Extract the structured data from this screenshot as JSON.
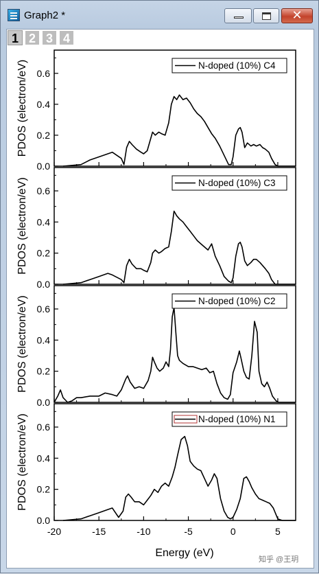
{
  "window": {
    "title": "Graph2 *",
    "controls": {
      "minimize": "minimize",
      "maximize": "maximize",
      "close": "✕"
    }
  },
  "tabs": [
    "1",
    "2",
    "3",
    "4"
  ],
  "active_tab": 0,
  "watermark": "知乎 @王玥",
  "chart_data": [
    {
      "type": "line",
      "ylabel": "PDOS (electron/eV)",
      "xlabel": "",
      "xlim": [
        -20,
        7
      ],
      "ylim": [
        0,
        0.75
      ],
      "yticks": [
        "0.0",
        "0.2",
        "0.4",
        "0.6"
      ],
      "series": [
        {
          "name": "N-doped (10%) C4",
          "color": "#000000",
          "x": [
            -19,
            -17,
            -16,
            -15,
            -14,
            -13.5,
            -12.5,
            -12.2,
            -11.9,
            -11.6,
            -11.3,
            -10.8,
            -10.3,
            -10,
            -9.6,
            -9.2,
            -9,
            -8.7,
            -8.3,
            -8,
            -7.6,
            -7.2,
            -6.9,
            -6.6,
            -6.3,
            -6,
            -5.6,
            -5.2,
            -4.8,
            -4.4,
            -4,
            -3.6,
            -3.2,
            -2.8,
            -2.4,
            -2,
            -1.5,
            -1,
            -0.5,
            -0.2,
            0,
            0.3,
            0.6,
            0.8,
            1,
            1.3,
            1.6,
            2,
            2.3,
            2.6,
            3,
            3.3,
            3.6,
            4,
            4.3,
            4.7,
            5,
            5.3,
            6,
            7
          ],
          "y": [
            0,
            0.01,
            0.04,
            0.06,
            0.08,
            0.09,
            0.05,
            0.01,
            0.12,
            0.16,
            0.14,
            0.11,
            0.09,
            0.08,
            0.1,
            0.18,
            0.22,
            0.2,
            0.22,
            0.21,
            0.2,
            0.28,
            0.4,
            0.45,
            0.43,
            0.46,
            0.43,
            0.44,
            0.41,
            0.37,
            0.34,
            0.32,
            0.29,
            0.25,
            0.21,
            0.18,
            0.13,
            0.07,
            0.01,
            0.01,
            0.06,
            0.2,
            0.24,
            0.25,
            0.22,
            0.12,
            0.15,
            0.13,
            0.14,
            0.13,
            0.14,
            0.12,
            0.11,
            0.09,
            0.05,
            0.01,
            0,
            0,
            0,
            0
          ]
        }
      ]
    },
    {
      "type": "line",
      "ylabel": "PDOS (electron/eV)",
      "xlabel": "",
      "xlim": [
        -20,
        7
      ],
      "ylim": [
        0,
        0.75
      ],
      "yticks": [
        "0.0",
        "0.2",
        "0.4",
        "0.6"
      ],
      "series": [
        {
          "name": "N-doped (10%) C3",
          "color": "#000000",
          "x": [
            -19,
            -17,
            -16,
            -15,
            -14,
            -13.5,
            -12.5,
            -12.2,
            -11.9,
            -11.6,
            -11.3,
            -10.8,
            -10.3,
            -10,
            -9.6,
            -9.2,
            -9,
            -8.7,
            -8.3,
            -8,
            -7.6,
            -7.2,
            -6.9,
            -6.6,
            -6.3,
            -6,
            -5.6,
            -5.2,
            -4.8,
            -4.4,
            -4,
            -3.6,
            -3.2,
            -2.8,
            -2.4,
            -2,
            -1.5,
            -1,
            -0.5,
            -0.2,
            0,
            0.3,
            0.6,
            0.8,
            1,
            1.3,
            1.6,
            2,
            2.3,
            2.6,
            3,
            3.3,
            3.6,
            4,
            4.3,
            4.7,
            5,
            5.3,
            6,
            7
          ],
          "y": [
            0,
            0.01,
            0.03,
            0.05,
            0.07,
            0.06,
            0.03,
            0.01,
            0.12,
            0.16,
            0.13,
            0.1,
            0.1,
            0.09,
            0.08,
            0.14,
            0.2,
            0.22,
            0.2,
            0.21,
            0.23,
            0.24,
            0.34,
            0.47,
            0.44,
            0.42,
            0.4,
            0.37,
            0.34,
            0.31,
            0.28,
            0.26,
            0.24,
            0.22,
            0.26,
            0.18,
            0.12,
            0.05,
            0.02,
            0.01,
            0.04,
            0.18,
            0.26,
            0.27,
            0.24,
            0.15,
            0.12,
            0.14,
            0.16,
            0.16,
            0.14,
            0.12,
            0.1,
            0.07,
            0.03,
            0,
            0,
            0,
            0,
            0
          ]
        }
      ]
    },
    {
      "type": "line",
      "ylabel": "PDOS (electron/eV)",
      "xlabel": "",
      "xlim": [
        -20,
        7
      ],
      "ylim": [
        0,
        0.75
      ],
      "yticks": [
        "0.0",
        "0.2",
        "0.4",
        "0.6"
      ],
      "series": [
        {
          "name": "N-doped (10%) C2",
          "color": "#000000",
          "x": [
            -20,
            -19.6,
            -19.3,
            -19,
            -18.5,
            -18,
            -17.5,
            -17,
            -16,
            -15,
            -14.3,
            -13.5,
            -13,
            -12.5,
            -12,
            -11.8,
            -11.5,
            -11,
            -10.5,
            -10,
            -9.5,
            -9.2,
            -9,
            -8.8,
            -8.5,
            -8.2,
            -7.8,
            -7.5,
            -7.2,
            -7,
            -6.8,
            -6.6,
            -6.4,
            -6.2,
            -6,
            -5.6,
            -5,
            -4.5,
            -4,
            -3.5,
            -3,
            -2.6,
            -2.2,
            -1.8,
            -1.4,
            -1,
            -0.6,
            -0.3,
            0,
            0.4,
            0.7,
            0.9,
            1.2,
            1.5,
            1.8,
            2.1,
            2.4,
            2.7,
            2.9,
            3.2,
            3.5,
            3.8,
            4.1,
            4.4,
            4.8,
            5.1,
            5.5,
            6,
            7
          ],
          "y": [
            0,
            0.04,
            0.08,
            0.03,
            0,
            0.01,
            0.03,
            0.03,
            0.04,
            0.04,
            0.06,
            0.05,
            0.04,
            0.08,
            0.15,
            0.17,
            0.13,
            0.09,
            0.1,
            0.09,
            0.14,
            0.2,
            0.29,
            0.26,
            0.22,
            0.2,
            0.22,
            0.26,
            0.23,
            0.34,
            0.55,
            0.61,
            0.45,
            0.3,
            0.27,
            0.25,
            0.23,
            0.23,
            0.22,
            0.21,
            0.22,
            0.19,
            0.2,
            0.12,
            0.06,
            0.03,
            0.02,
            0.05,
            0.19,
            0.26,
            0.33,
            0.28,
            0.2,
            0.16,
            0.15,
            0.3,
            0.52,
            0.45,
            0.2,
            0.12,
            0.1,
            0.13,
            0.09,
            0.04,
            0.01,
            0,
            0,
            0,
            0
          ]
        }
      ]
    },
    {
      "type": "line",
      "ylabel": "PDOS (electron/eV)",
      "xlabel": "Energy (eV)",
      "xlim": [
        -20,
        7
      ],
      "ylim": [
        0,
        0.75
      ],
      "yticks": [
        "0.0",
        "0.2",
        "0.4",
        "0.6"
      ],
      "xticks": [
        "-20",
        "-15",
        "-10",
        "-5",
        "0",
        "5"
      ],
      "series": [
        {
          "name": "N-doped (10%) N1",
          "color": "#000000",
          "legend_border": "#b03030",
          "x": [
            -19,
            -17,
            -16,
            -15,
            -14,
            -13.5,
            -12.8,
            -12.3,
            -12,
            -11.7,
            -11.4,
            -11,
            -10.5,
            -10,
            -9.6,
            -9.2,
            -8.8,
            -8.4,
            -8,
            -7.6,
            -7.2,
            -6.8,
            -6.5,
            -6.2,
            -5.8,
            -5.4,
            -5.1,
            -4.8,
            -4.4,
            -4,
            -3.6,
            -3.2,
            -2.8,
            -2.4,
            -2.1,
            -1.8,
            -1.4,
            -1,
            -0.6,
            -0.3,
            0,
            0.4,
            0.8,
            1.2,
            1.5,
            1.8,
            2.1,
            2.5,
            2.9,
            3.3,
            3.7,
            4.1,
            4.5,
            5,
            5.5,
            6,
            7
          ],
          "y": [
            0,
            0.01,
            0.03,
            0.05,
            0.07,
            0.08,
            0.02,
            0.06,
            0.15,
            0.17,
            0.15,
            0.12,
            0.12,
            0.1,
            0.13,
            0.16,
            0.2,
            0.18,
            0.22,
            0.24,
            0.22,
            0.28,
            0.34,
            0.42,
            0.52,
            0.54,
            0.48,
            0.38,
            0.35,
            0.33,
            0.32,
            0.27,
            0.22,
            0.26,
            0.3,
            0.27,
            0.14,
            0.06,
            0.02,
            0.01,
            0.02,
            0.07,
            0.14,
            0.27,
            0.28,
            0.25,
            0.21,
            0.17,
            0.14,
            0.13,
            0.12,
            0.11,
            0.08,
            0.01,
            0,
            0,
            0
          ]
        }
      ]
    }
  ]
}
